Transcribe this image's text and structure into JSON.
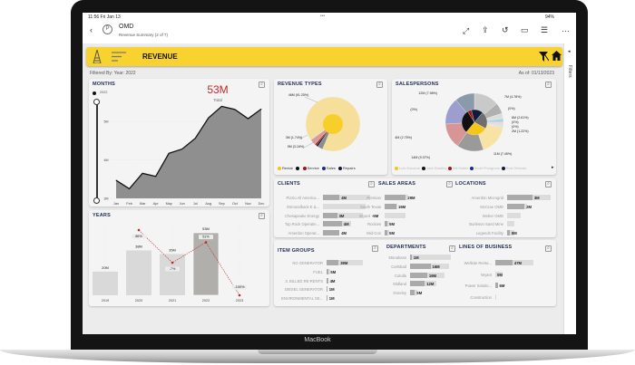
{
  "device": {
    "brand": "MacBook"
  },
  "status_bar": {
    "time": "11:56  Fri Jan 13",
    "dots": "•••",
    "battery": "94%"
  },
  "app_bar": {
    "title": "OMD",
    "subtitle": "Revenue Summary  (2 of 7)",
    "icons": [
      "back-icon",
      "logo-icon",
      "expand-icon",
      "share-icon",
      "undo-icon",
      "comment-icon",
      "list-icon",
      "more-icon"
    ]
  },
  "header": {
    "title": "REVENUE",
    "accent": "#f8d22f"
  },
  "filter_info": {
    "filtered_by": "Filtered By: Year: 2022",
    "as_of": "As of: 01/13/2023"
  },
  "filters_pane": {
    "label": "Filters"
  },
  "months": {
    "title": "MONTHS",
    "total": "53M",
    "total_label": "Total",
    "slider_top": "2022",
    "chart_data": {
      "type": "area",
      "x": [
        "Jan",
        "Feb",
        "Mar",
        "Apr",
        "May",
        "Jun",
        "Jul",
        "Aug",
        "Sep",
        "Oct",
        "Nov",
        "Dec"
      ],
      "values": [
        3.47,
        3.25,
        3.65,
        3.57,
        4.17,
        4.28,
        4.56,
        5.09,
        5.39,
        5.31,
        5.07,
        5.32
      ],
      "yticks": [
        "3M",
        "4M",
        "5M"
      ],
      "ylim": [
        3,
        5.4
      ],
      "unit": "M"
    }
  },
  "years": {
    "title": "YEARS",
    "chart_data": {
      "type": "bar+line",
      "categories": [
        "2019",
        "2020",
        "2021",
        "2022",
        "2023"
      ],
      "bar_values": [
        20,
        38,
        35,
        53,
        null
      ],
      "bar_labels": [
        "20M",
        "38M",
        "35M",
        "53M",
        ""
      ],
      "line_values": [
        null,
        86,
        -7,
        51,
        -100
      ],
      "line_labels": [
        "",
        "86%",
        "-7%",
        "51%",
        "-100%"
      ],
      "highlight": "2022",
      "bar_color": "#d9d9d9",
      "highlight_color": "#b0afac",
      "line_color": "#c0292b"
    }
  },
  "revenue_types": {
    "title": "REVENUE TYPES",
    "labels": [
      "46M\n(91.25%)",
      "3M\n(1.74%)",
      "5M (3.16%)"
    ],
    "slices": [
      {
        "share": 91.25,
        "color": "#f6df9b"
      },
      {
        "share": 3.16,
        "color": "#8c8c8c"
      },
      {
        "share": 1.1,
        "color": "#111111"
      },
      {
        "share": 1.0,
        "color": "#a01515"
      },
      {
        "share": 3.49,
        "color": "#d99a9a"
      }
    ],
    "legend": [
      {
        "label": "Rental",
        "color": "#f5c518"
      },
      {
        "label": "",
        "color": "#111111"
      },
      {
        "label": "Service",
        "color": "#a01515"
      },
      {
        "label": "Sales",
        "color": "#1a2a8a"
      },
      {
        "label": "Repairs",
        "color": "#10183a"
      }
    ]
  },
  "salespersons": {
    "title": "SALESPERSONS",
    "labels": [
      "12M (7.98%)",
      "7M (4.78%)",
      "(0%)",
      "(0%)",
      "6M (2.61%)",
      "(0%)",
      "(0%)",
      "2M (1.22%)",
      "11M (7.45%)",
      "14M (9.37%)",
      "4M (2.75%)"
    ],
    "slices": [
      {
        "share": 14,
        "color": "#c9c9c9"
      },
      {
        "share": 6,
        "color": "#b0b0b0"
      },
      {
        "share": 3,
        "color": "#dddddd"
      },
      {
        "share": 2,
        "color": "#a8d3e0"
      },
      {
        "share": 2,
        "color": "#f1d6d6"
      },
      {
        "share": 1,
        "color": "#c5e6ee"
      },
      {
        "share": 17,
        "color": "#f7e3a3"
      },
      {
        "share": 15,
        "color": "#9a9a9a"
      },
      {
        "share": 14,
        "color": "#d79595"
      },
      {
        "share": 15,
        "color": "#9d9dcf"
      },
      {
        "share": 11,
        "color": "#8a9aab"
      }
    ],
    "inner_slices": [
      {
        "share": 22,
        "color": "#6e6e6e"
      },
      {
        "share": 28,
        "color": "#f5c518"
      },
      {
        "share": 30,
        "color": "#111111"
      },
      {
        "share": 5,
        "color": "#a01515"
      },
      {
        "share": 15,
        "color": "#0e1b3d"
      }
    ],
    "legend": [
      {
        "label": "Luis Escobar",
        "color": "#f5c518"
      },
      {
        "label": "Jack Bradley",
        "color": "#111111"
      },
      {
        "label": "Bill Halter",
        "color": "#a01515"
      },
      {
        "label": "Scott Prosgrove",
        "color": "#1a2a8a"
      },
      {
        "label": "Rod Orlando",
        "color": "#0e1b3d"
      }
    ]
  },
  "clients": {
    "title": "CLIENTS",
    "rows": [
      {
        "label": "Pizzio All America...",
        "value": "4M",
        "fill": 0.35,
        "track": 1.0
      },
      {
        "label": "Osmondback E &...",
        "value": "",
        "fill": 0,
        "track": 0.9
      },
      {
        "label": "Chesapeake Energy",
        "value": "3M",
        "fill": 0.3,
        "track": 0.85
      },
      {
        "label": "Top Rock Operatin...",
        "value": "4M",
        "fill": 0.4,
        "track": 0.6
      },
      {
        "label": "Amerdon Operat...",
        "value": "4M",
        "fill": 0.35,
        "track": 0.35
      }
    ]
  },
  "sales_areas": {
    "title": "SALES AREAS",
    "rows": [
      {
        "label": "Permian",
        "value": "29M",
        "fill": 0.9,
        "track": 1.0
      },
      {
        "label": "South Texas",
        "value": "16M",
        "fill": 0.5,
        "track": 0.55
      },
      {
        "label": "Wyant",
        "value": "-5M",
        "fill": 0,
        "track": 0.9
      },
      {
        "label": "Rockies",
        "value": "5M",
        "fill": 0.12,
        "track": 0.2
      },
      {
        "label": "Mid-Con",
        "value": "5M",
        "fill": 0.12,
        "track": 0.2
      }
    ]
  },
  "locations": {
    "title": "LOCATIONS",
    "rows": [
      {
        "label": "Amerdon Microgrid",
        "value": "3M",
        "fill": 0.58,
        "track": 1.0
      },
      {
        "label": "McCrae OMD",
        "value": "2M",
        "fill": 0.4,
        "track": 0.45
      },
      {
        "label": "Weber OMD",
        "value": "",
        "fill": 0,
        "track": 0.32
      },
      {
        "label": "Burleson Sand Mine",
        "value": "",
        "fill": 0,
        "track": 0.17
      },
      {
        "label": "Legends Facility",
        "value": "0M",
        "fill": 0.06,
        "track": 0.17
      }
    ]
  },
  "item_groups": {
    "title": "ITEM GROUPS",
    "rows": [
      {
        "label": "NO GENERATOR",
        "value": "39M",
        "fill": 0.33,
        "track": 1.0
      },
      {
        "label": "FUEL",
        "value": "5M",
        "fill": 0.06,
        "track": 0.1
      },
      {
        "label": "3. BILLED RE-RENTS",
        "value": "4M",
        "fill": 0.04,
        "track": 0.05
      },
      {
        "label": "DIESEL GENERATOR",
        "value": "1M",
        "fill": 0.02,
        "track": 0.02
      },
      {
        "label": "ENVIRONMENTAL SE...",
        "value": "1M",
        "fill": 0.02,
        "track": 0.02
      }
    ]
  },
  "departments": {
    "title": "DEPARTMENTS",
    "rows": [
      {
        "label": "Monahans",
        "value": "1M",
        "fill": 0.04,
        "track": 1.0
      },
      {
        "label": "Carlsbad",
        "value": "16M",
        "fill": 0.5,
        "track": 0.95
      },
      {
        "label": "Cotulla",
        "value": "16M",
        "fill": 0.42,
        "track": 0.85
      },
      {
        "label": "Midland",
        "value": "12M",
        "fill": 0.36,
        "track": 0.65
      },
      {
        "label": "Greeley",
        "value": "5M",
        "fill": 0.12,
        "track": 0.18
      }
    ]
  },
  "lines_of_business": {
    "title": "LINES OF BUSINESS",
    "rows": [
      {
        "label": "Wellsite Renta...",
        "value": "47M",
        "fill": 0.45,
        "track": 1.0
      },
      {
        "label": "Wyant",
        "value": "0M",
        "fill": 0,
        "track": 0.2
      },
      {
        "label": "Power Solutio...",
        "value": "6M",
        "fill": 0.06,
        "track": 0.06
      },
      {
        "label": "Construction",
        "value": "",
        "fill": 0,
        "track": 0.01
      }
    ]
  }
}
